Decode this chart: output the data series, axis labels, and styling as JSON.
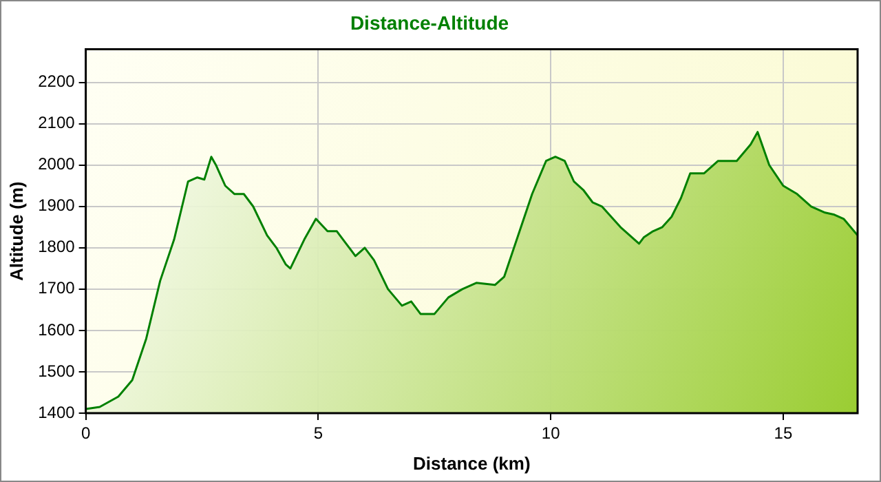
{
  "chart_data": {
    "type": "area",
    "title": "Distance-Altitude",
    "xlabel": "Distance (km)",
    "ylabel": "Altitude (m)",
    "x": [
      0,
      0.3,
      0.7,
      1.0,
      1.3,
      1.6,
      1.9,
      2.2,
      2.4,
      2.55,
      2.7,
      2.8,
      3.0,
      3.2,
      3.4,
      3.6,
      3.9,
      4.1,
      4.3,
      4.4,
      4.7,
      4.95,
      5.2,
      5.4,
      5.6,
      5.8,
      6.0,
      6.2,
      6.5,
      6.8,
      7.0,
      7.2,
      7.5,
      7.8,
      8.1,
      8.4,
      8.8,
      9.0,
      9.3,
      9.6,
      9.9,
      10.1,
      10.3,
      10.5,
      10.7,
      10.9,
      11.1,
      11.5,
      11.9,
      12.0,
      12.2,
      12.4,
      12.6,
      12.8,
      13.0,
      13.3,
      13.6,
      14.0,
      14.3,
      14.45,
      14.7,
      15.0,
      15.3,
      15.6,
      15.9,
      16.1,
      16.3,
      16.6
    ],
    "series": [
      {
        "color": "#008000",
        "values": [
          1410,
          1415,
          1440,
          1480,
          1580,
          1720,
          1820,
          1960,
          1970,
          1965,
          2020,
          2000,
          1950,
          1930,
          1930,
          1900,
          1830,
          1800,
          1760,
          1750,
          1820,
          1870,
          1840,
          1840,
          1810,
          1780,
          1800,
          1770,
          1700,
          1660,
          1670,
          1640,
          1640,
          1680,
          1700,
          1715,
          1710,
          1730,
          1830,
          1930,
          2010,
          2020,
          2010,
          1960,
          1940,
          1910,
          1900,
          1850,
          1810,
          1825,
          1840,
          1850,
          1875,
          1920,
          1980,
          1980,
          2010,
          2010,
          2050,
          2080,
          2000,
          1950,
          1930,
          1900,
          1885,
          1880,
          1870,
          1830
        ]
      }
    ],
    "xlim": [
      0,
      16.6
    ],
    "xticks": [
      0,
      5,
      10,
      15
    ],
    "ylim": [
      1400,
      2280
    ],
    "yticks": [
      1400,
      1500,
      1600,
      1700,
      1800,
      1900,
      2000,
      2100,
      2200
    ],
    "grid": true,
    "legend": false
  }
}
